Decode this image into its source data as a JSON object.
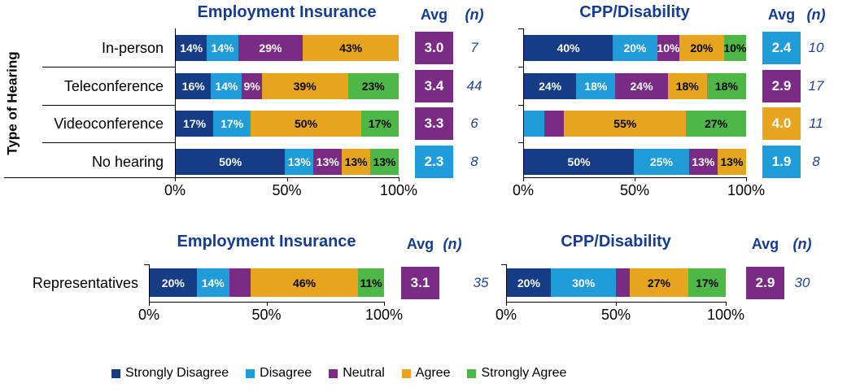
{
  "headers": {
    "avg": "Avg",
    "n": "(n)"
  },
  "colors": {
    "title_text": "#163c8f",
    "n_text": "#1f4496",
    "axis": "#000000",
    "segments": {
      "strongly_disagree": {
        "fill": "#153c85",
        "text": "#ffffff"
      },
      "disagree": {
        "fill": "#209cd8",
        "text": "#ffffff"
      },
      "neutral": {
        "fill": "#7a2c85",
        "text": "#ffffff"
      },
      "agree": {
        "fill": "#e7a41e",
        "text": "#000000"
      },
      "strongly_agree": {
        "fill": "#4db848",
        "text": "#000000"
      }
    }
  },
  "chart_data": {
    "type": "bar",
    "subtype": "horizontal-stacked-100percent",
    "x_ticks": [
      "0%",
      "50%",
      "100%"
    ],
    "x_range": [
      0,
      100
    ],
    "legend_items": [
      {
        "key": "strongly_disagree",
        "label": "Strongly Disagree"
      },
      {
        "key": "disagree",
        "label": "Disagree"
      },
      {
        "key": "neutral",
        "label": "Neutral"
      },
      {
        "key": "agree",
        "label": "Agree"
      },
      {
        "key": "strongly_agree",
        "label": "Strongly Agree"
      }
    ],
    "sections": [
      {
        "axis_label": "Type of Hearing",
        "categories": [
          "In-person",
          "Teleconference",
          "Videoconference",
          "No hearing"
        ],
        "charts": [
          {
            "title": "Employment Insurance",
            "rows": [
              {
                "category": "In-person",
                "avg": "3.0",
                "avg_key": "neutral",
                "n": "7",
                "segments": [
                  {
                    "key": "strongly_disagree",
                    "pct": 14,
                    "label": "14%"
                  },
                  {
                    "key": "disagree",
                    "pct": 14,
                    "label": "14%"
                  },
                  {
                    "key": "neutral",
                    "pct": 29,
                    "label": "29%"
                  },
                  {
                    "key": "agree",
                    "pct": 43,
                    "label": "43%"
                  }
                ]
              },
              {
                "category": "Teleconference",
                "avg": "3.4",
                "avg_key": "neutral",
                "n": "44",
                "segments": [
                  {
                    "key": "strongly_disagree",
                    "pct": 16,
                    "label": "16%"
                  },
                  {
                    "key": "disagree",
                    "pct": 14,
                    "label": "14%"
                  },
                  {
                    "key": "neutral",
                    "pct": 9,
                    "label": "9%"
                  },
                  {
                    "key": "agree",
                    "pct": 39,
                    "label": "39%"
                  },
                  {
                    "key": "strongly_agree",
                    "pct": 23,
                    "label": "23%"
                  }
                ]
              },
              {
                "category": "Videoconference",
                "avg": "3.3",
                "avg_key": "neutral",
                "n": "6",
                "segments": [
                  {
                    "key": "strongly_disagree",
                    "pct": 17,
                    "label": "17%"
                  },
                  {
                    "key": "disagree",
                    "pct": 17,
                    "label": "17%"
                  },
                  {
                    "key": "agree",
                    "pct": 50,
                    "label": "50%"
                  },
                  {
                    "key": "strongly_agree",
                    "pct": 17,
                    "label": "17%"
                  }
                ]
              },
              {
                "category": "No hearing",
                "avg": "2.3",
                "avg_key": "disagree",
                "n": "8",
                "segments": [
                  {
                    "key": "strongly_disagree",
                    "pct": 50,
                    "label": "50%"
                  },
                  {
                    "key": "disagree",
                    "pct": 13,
                    "label": "13%"
                  },
                  {
                    "key": "neutral",
                    "pct": 13,
                    "label": "13%"
                  },
                  {
                    "key": "agree",
                    "pct": 13,
                    "label": "13%"
                  },
                  {
                    "key": "strongly_agree",
                    "pct": 13,
                    "label": "13%"
                  }
                ]
              }
            ]
          },
          {
            "title": "CPP/Disability",
            "rows": [
              {
                "category": "In-person",
                "avg": "2.4",
                "avg_key": "disagree",
                "n": "10",
                "segments": [
                  {
                    "key": "strongly_disagree",
                    "pct": 40,
                    "label": "40%"
                  },
                  {
                    "key": "disagree",
                    "pct": 20,
                    "label": "20%"
                  },
                  {
                    "key": "neutral",
                    "pct": 10,
                    "label": "10%"
                  },
                  {
                    "key": "agree",
                    "pct": 20,
                    "label": "20%"
                  },
                  {
                    "key": "strongly_agree",
                    "pct": 10,
                    "label": "10%"
                  }
                ]
              },
              {
                "category": "Teleconference",
                "avg": "2.9",
                "avg_key": "neutral",
                "n": "17",
                "segments": [
                  {
                    "key": "strongly_disagree",
                    "pct": 24,
                    "label": "24%"
                  },
                  {
                    "key": "disagree",
                    "pct": 18,
                    "label": "18%"
                  },
                  {
                    "key": "neutral",
                    "pct": 24,
                    "label": "24%"
                  },
                  {
                    "key": "agree",
                    "pct": 18,
                    "label": "18%"
                  },
                  {
                    "key": "strongly_agree",
                    "pct": 18,
                    "label": "18%"
                  }
                ]
              },
              {
                "category": "Videoconference",
                "avg": "4.0",
                "avg_key": "agree",
                "n": "11",
                "segments": [
                  {
                    "key": "disagree",
                    "pct": 9,
                    "label": ""
                  },
                  {
                    "key": "neutral",
                    "pct": 9,
                    "label": ""
                  },
                  {
                    "key": "agree",
                    "pct": 55,
                    "label": "55%"
                  },
                  {
                    "key": "strongly_agree",
                    "pct": 27,
                    "label": "27%"
                  }
                ]
              },
              {
                "category": "No hearing",
                "avg": "1.9",
                "avg_key": "disagree",
                "n": "8",
                "segments": [
                  {
                    "key": "strongly_disagree",
                    "pct": 50,
                    "label": "50%"
                  },
                  {
                    "key": "disagree",
                    "pct": 25,
                    "label": "25%"
                  },
                  {
                    "key": "neutral",
                    "pct": 13,
                    "label": "13%"
                  },
                  {
                    "key": "agree",
                    "pct": 13,
                    "label": "13%"
                  }
                ]
              }
            ]
          }
        ]
      },
      {
        "axis_label": "",
        "categories": [
          "Representatives"
        ],
        "charts": [
          {
            "title": "Employment Insurance",
            "rows": [
              {
                "category": "Representatives",
                "avg": "3.1",
                "avg_key": "neutral",
                "n": "35",
                "segments": [
                  {
                    "key": "strongly_disagree",
                    "pct": 20,
                    "label": "20%"
                  },
                  {
                    "key": "disagree",
                    "pct": 14,
                    "label": "14%"
                  },
                  {
                    "key": "neutral",
                    "pct": 9,
                    "label": ""
                  },
                  {
                    "key": "agree",
                    "pct": 46,
                    "label": "46%"
                  },
                  {
                    "key": "strongly_agree",
                    "pct": 11,
                    "label": "11%"
                  }
                ]
              }
            ]
          },
          {
            "title": "CPP/Disability",
            "rows": [
              {
                "category": "Representatives",
                "avg": "2.9",
                "avg_key": "neutral",
                "n": "30",
                "segments": [
                  {
                    "key": "strongly_disagree",
                    "pct": 20,
                    "label": "20%"
                  },
                  {
                    "key": "disagree",
                    "pct": 30,
                    "label": "30%"
                  },
                  {
                    "key": "neutral",
                    "pct": 6,
                    "label": ""
                  },
                  {
                    "key": "agree",
                    "pct": 27,
                    "label": "27%"
                  },
                  {
                    "key": "strongly_agree",
                    "pct": 17,
                    "label": "17%"
                  }
                ]
              }
            ]
          }
        ]
      }
    ]
  }
}
